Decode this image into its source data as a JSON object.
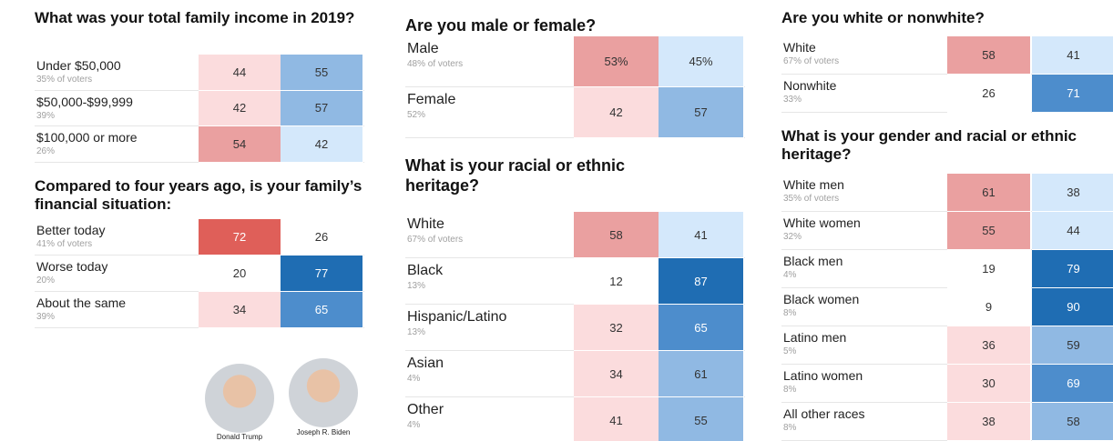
{
  "sections": [
    {
      "title": "What was your total family income in 2019?",
      "rows": [
        {
          "label": "Under $50,000",
          "sub": "35% of voters",
          "trump": 44,
          "biden": 55
        },
        {
          "label": "$50,000-$99,999",
          "sub": "39%",
          "trump": 42,
          "biden": 57
        },
        {
          "label": "$100,000 or more",
          "sub": "26%",
          "trump": 54,
          "biden": 42
        }
      ]
    },
    {
      "title": "Compared to four years ago, is your family’s financial situation:",
      "rows": [
        {
          "label": "Better today",
          "sub": "41% of voters",
          "trump": 72,
          "biden": 26
        },
        {
          "label": "Worse today",
          "sub": "20%",
          "trump": 20,
          "biden": 77
        },
        {
          "label": "About the same",
          "sub": "39%",
          "trump": 34,
          "biden": 65
        }
      ]
    },
    {
      "title": "Are you male or female?",
      "rows": [
        {
          "label": "Male",
          "sub": "48% of voters",
          "trump": "53%",
          "biden": "45%"
        },
        {
          "label": "Female",
          "sub": "52%",
          "trump": 42,
          "biden": 57
        }
      ]
    },
    {
      "title": "What is your racial or ethnic heritage?",
      "rows": [
        {
          "label": "White",
          "sub": "67% of voters",
          "trump": 58,
          "biden": 41
        },
        {
          "label": "Black",
          "sub": "13%",
          "trump": 12,
          "biden": 87
        },
        {
          "label": "Hispanic/Latino",
          "sub": "13%",
          "trump": 32,
          "biden": 65
        },
        {
          "label": "Asian",
          "sub": "4%",
          "trump": 34,
          "biden": 61
        },
        {
          "label": "Other",
          "sub": "4%",
          "trump": 41,
          "biden": 55
        }
      ]
    },
    {
      "title": "Are you white or nonwhite?",
      "rows": [
        {
          "label": "White",
          "sub": "67% of voters",
          "trump": 58,
          "biden": 41
        },
        {
          "label": "Nonwhite",
          "sub": "33%",
          "trump": 26,
          "biden": 71
        }
      ]
    },
    {
      "title": "What is your gender and racial or ethnic heritage?",
      "rows": [
        {
          "label": "White men",
          "sub": "35% of voters",
          "trump": 61,
          "biden": 38
        },
        {
          "label": "White women",
          "sub": "32%",
          "trump": 55,
          "biden": 44
        },
        {
          "label": "Black men",
          "sub": "4%",
          "trump": 19,
          "biden": 79
        },
        {
          "label": "Black women",
          "sub": "8%",
          "trump": 9,
          "biden": 90
        },
        {
          "label": "Latino men",
          "sub": "5%",
          "trump": 36,
          "biden": 59
        },
        {
          "label": "Latino women",
          "sub": "8%",
          "trump": 30,
          "biden": 69
        },
        {
          "label": "All other races",
          "sub": "8%",
          "trump": 38,
          "biden": 58
        }
      ]
    }
  ],
  "candidates": [
    "Donald Trump",
    "Joseph R. Biden"
  ]
}
